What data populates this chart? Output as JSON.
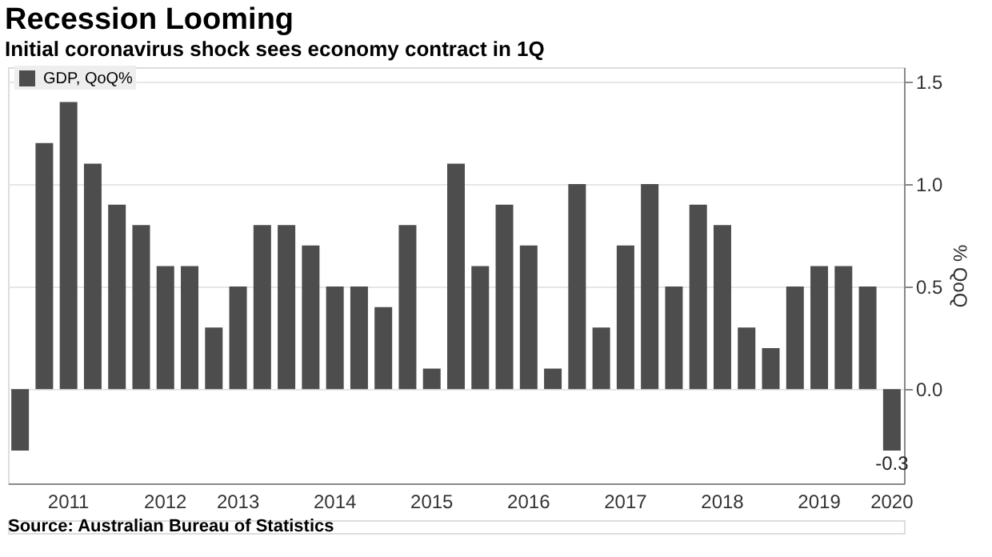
{
  "chart_data": {
    "type": "bar",
    "title": "Recession Looming",
    "subtitle": "Initial coronavirus shock sees economy contract in 1Q",
    "ylabel": "% QoQ",
    "categories": [
      null,
      null,
      "2011",
      null,
      null,
      null,
      "2012",
      null,
      null,
      "2013",
      null,
      null,
      null,
      "2014",
      null,
      null,
      null,
      "2015",
      null,
      null,
      null,
      "2016",
      null,
      null,
      null,
      "2017",
      null,
      null,
      null,
      "2018",
      null,
      null,
      null,
      "2019",
      null,
      null,
      "2020"
    ],
    "series": [
      {
        "name": "GDP, QoQ%",
        "color": "#4d4d4d",
        "values": [
          -0.3,
          1.2,
          1.4,
          1.1,
          0.9,
          0.8,
          0.6,
          0.6,
          0.3,
          0.5,
          0.8,
          0.8,
          0.7,
          0.5,
          0.5,
          0.4,
          0.8,
          0.1,
          1.1,
          0.6,
          0.9,
          0.7,
          0.1,
          1.0,
          0.3,
          0.7,
          1.0,
          0.5,
          0.9,
          0.8,
          0.3,
          0.2,
          0.5,
          0.6,
          0.6,
          0.5,
          -0.3
        ],
        "value_labels": [
          null,
          null,
          null,
          null,
          null,
          null,
          null,
          null,
          null,
          null,
          null,
          null,
          null,
          null,
          null,
          null,
          null,
          null,
          null,
          null,
          null,
          null,
          null,
          null,
          null,
          null,
          null,
          null,
          null,
          null,
          null,
          null,
          null,
          null,
          null,
          null,
          "-0.3"
        ]
      }
    ],
    "ylim": [
      -0.46,
      1.57
    ],
    "yticks": [
      {
        "value": 0,
        "label": "0.0"
      },
      {
        "value": 0.5,
        "label": "0.5"
      },
      {
        "value": 1,
        "label": "1.0"
      },
      {
        "value": 1.5,
        "label": "1.5"
      }
    ],
    "grid": "y",
    "legend": "top left",
    "annotations": [
      "Source: Australian Bureau of Statistics"
    ]
  }
}
